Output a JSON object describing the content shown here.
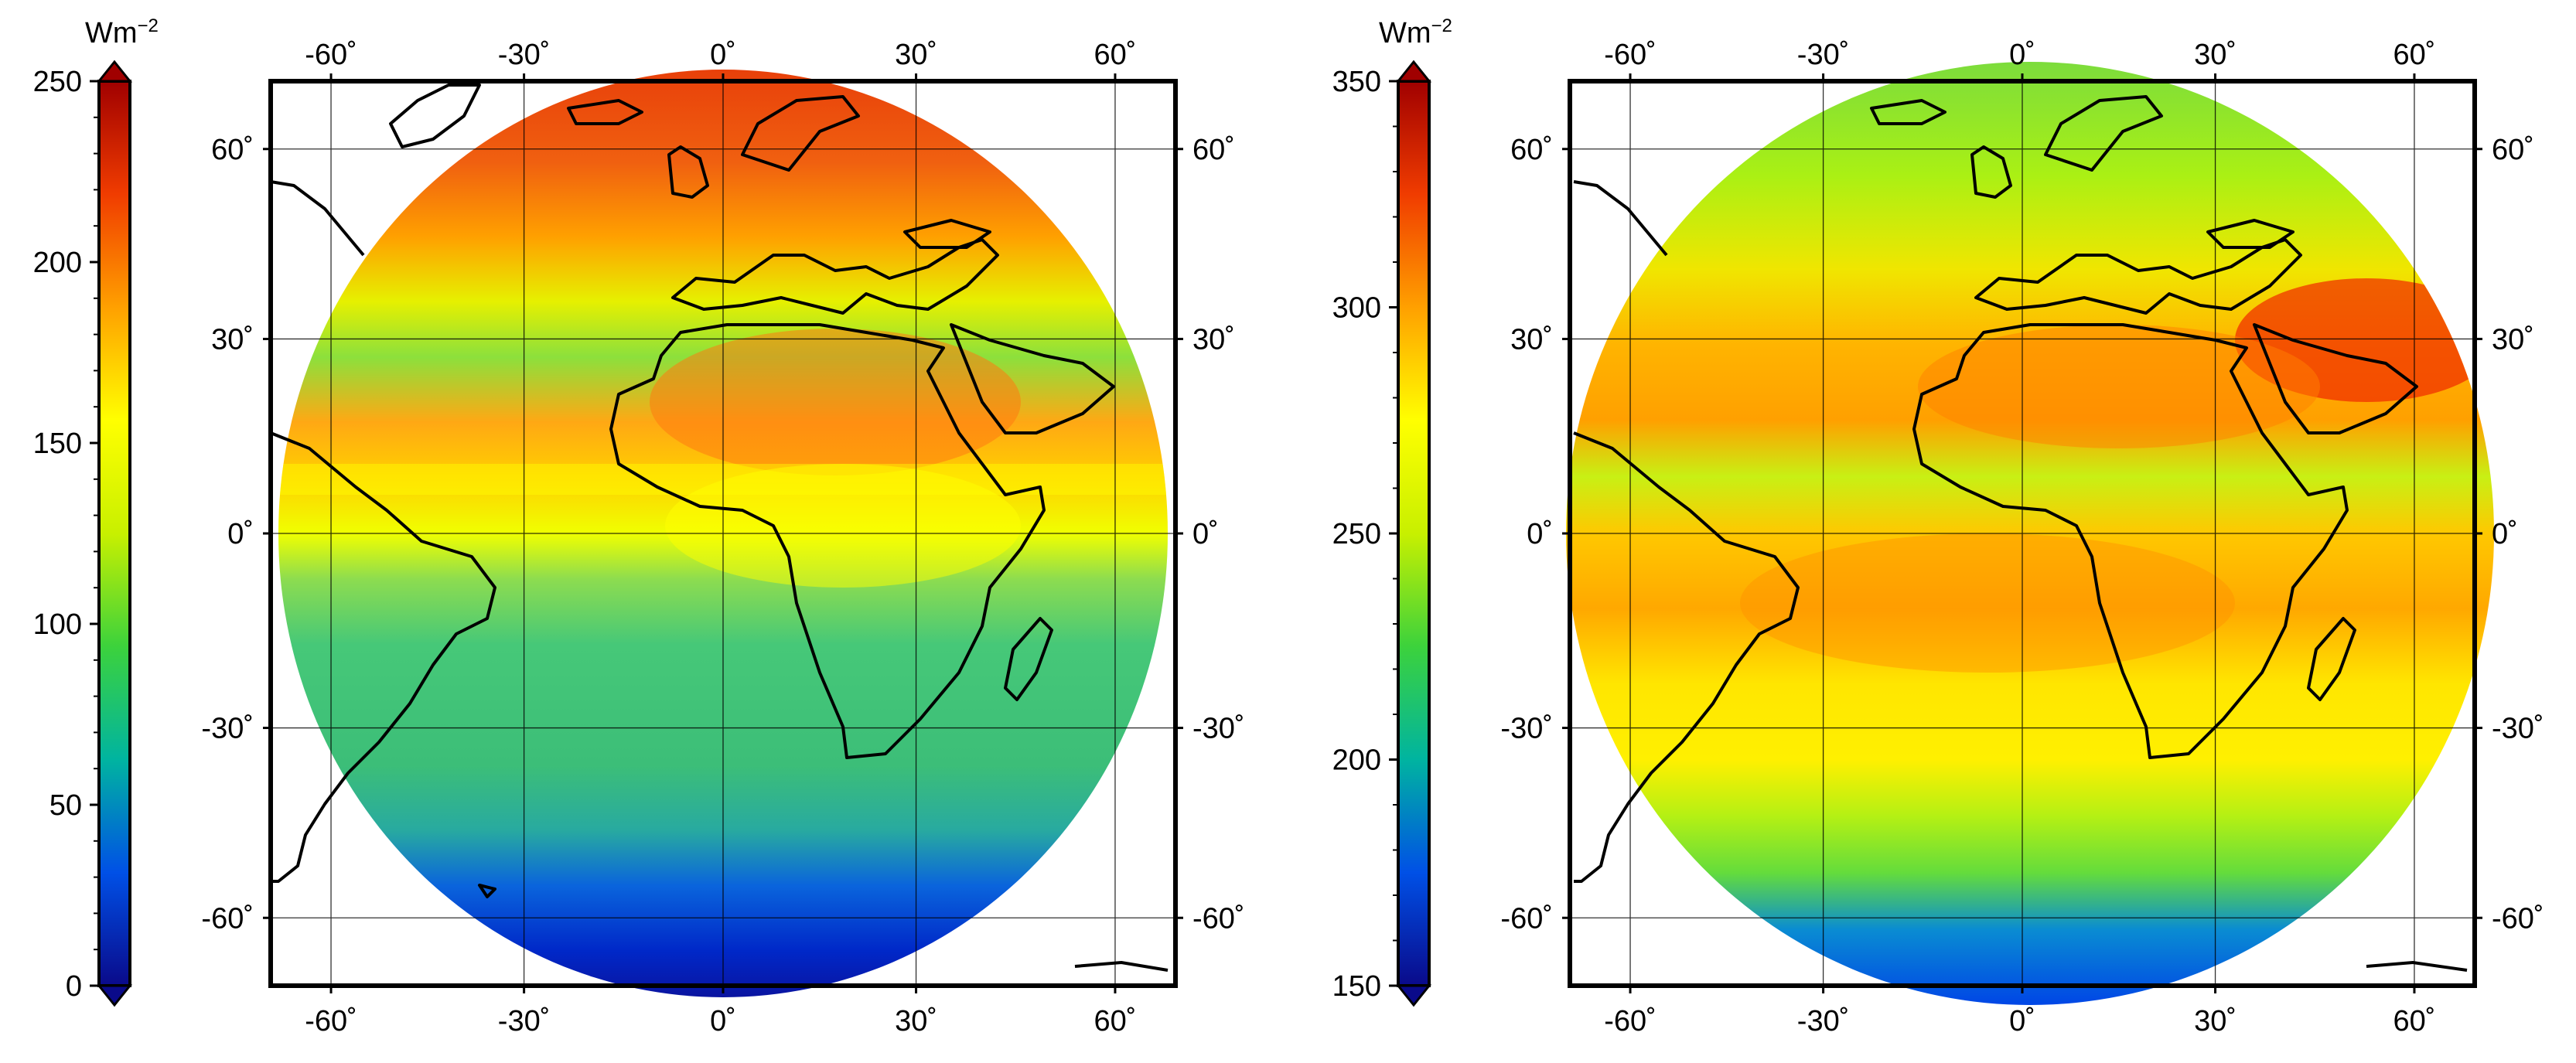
{
  "colormap": {
    "stops": [
      "#0a0a8a",
      "#0050e6",
      "#00b4a0",
      "#3cd23c",
      "#c8f000",
      "#ffff00",
      "#ffa000",
      "#f03c00",
      "#a00000"
    ]
  },
  "panels": [
    {
      "id": "left",
      "colorbar": {
        "unit_base": "Wm",
        "unit_exp": "−2",
        "min": 0,
        "max": 250,
        "ticks": [
          "0",
          "50",
          "100",
          "150",
          "200",
          "250"
        ]
      },
      "map": {
        "lon_ticks": [
          "-60˚",
          "-30˚",
          "0˚",
          "30˚",
          "60˚"
        ],
        "lat_ticks_left": [
          "60˚",
          "30˚",
          "0˚",
          "-30˚",
          "-60˚"
        ],
        "lat_ticks_right": [
          "60˚",
          "30˚",
          "0˚",
          "-30˚",
          "-60˚"
        ]
      }
    },
    {
      "id": "right",
      "colorbar": {
        "unit_base": "Wm",
        "unit_exp": "−2",
        "min": 150,
        "max": 350,
        "ticks": [
          "150",
          "200",
          "250",
          "300",
          "350"
        ]
      },
      "map": {
        "lon_ticks": [
          "-60˚",
          "-30˚",
          "0˚",
          "30˚",
          "60˚"
        ],
        "lat_ticks_left": [
          "60˚",
          "30˚",
          "0˚",
          "-30˚",
          "-60˚"
        ],
        "lat_ticks_right": [
          "60˚",
          "30˚",
          "0˚",
          "-30˚",
          "-60˚"
        ]
      }
    }
  ]
}
